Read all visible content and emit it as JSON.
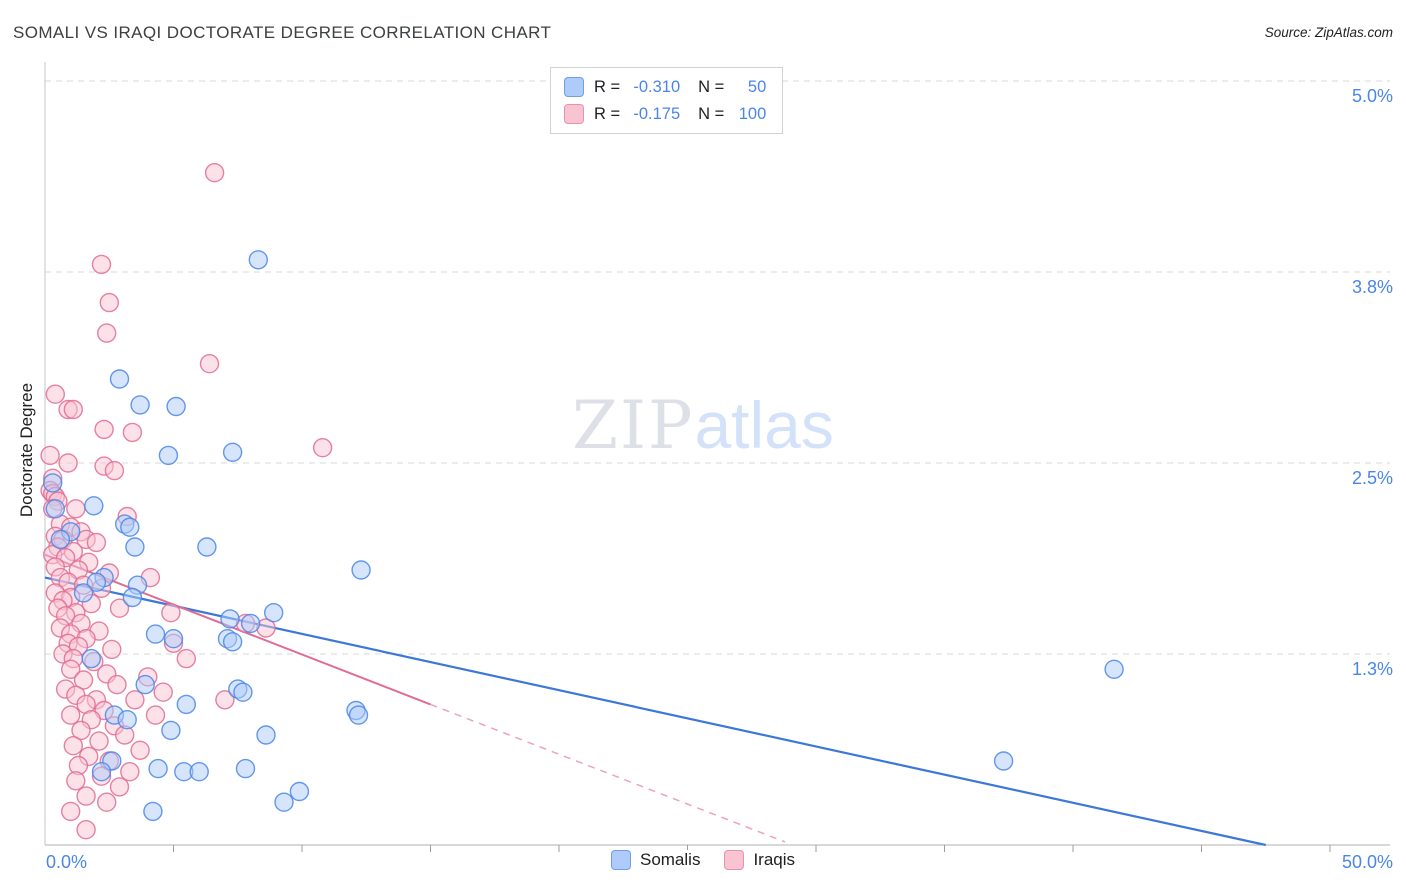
{
  "header": {
    "title": "SOMALI VS IRAQI DOCTORATE DEGREE CORRELATION CHART",
    "source": "Source: ZipAtlas.com"
  },
  "watermark": {
    "zip": "ZIP",
    "atlas": "atlas"
  },
  "legend_box": {
    "rows": [
      {
        "r_label": "R =",
        "r_value": "-0.310",
        "n_label": "N =",
        "n_value": "50"
      },
      {
        "r_label": "R =",
        "r_value": "-0.175",
        "n_label": "N =",
        "n_value": "100"
      }
    ]
  },
  "axes": {
    "y_label": "Doctorate Degree",
    "y_ticks": [
      {
        "label": "5.0%",
        "value": 5.0
      },
      {
        "label": "3.8%",
        "value": 3.75
      },
      {
        "label": "2.5%",
        "value": 2.5
      },
      {
        "label": "1.3%",
        "value": 1.25
      }
    ],
    "x_min_label": "0.0%",
    "x_max_label": "50.0%"
  },
  "bottom_legend": {
    "items": [
      {
        "label": "Somalis",
        "color": "#aecbfa",
        "border": "#6d9eeb"
      },
      {
        "label": "Iraqis",
        "color": "#f9c4d2",
        "border": "#e891ac"
      }
    ]
  },
  "chart_data": {
    "type": "scatter",
    "title": "Somali vs Iraqi Doctorate Degree correlation",
    "xlabel": "",
    "ylabel": "Doctorate Degree",
    "xlim": [
      0,
      50
    ],
    "ylim": [
      0,
      5.12
    ],
    "x_tick_step": 5,
    "grid": "dashed-horizontal",
    "legend_position": "bottom-center",
    "series": [
      {
        "name": "Somalis",
        "R": -0.31,
        "N": 50,
        "fill": "#aecbfa",
        "stroke": "#4a86e8",
        "points": [
          [
            8.3,
            3.83
          ],
          [
            2.9,
            3.05
          ],
          [
            3.7,
            2.88
          ],
          [
            5.1,
            2.87
          ],
          [
            7.3,
            2.57
          ],
          [
            4.8,
            2.55
          ],
          [
            0.3,
            2.37
          ],
          [
            0.4,
            2.2
          ],
          [
            1.9,
            2.22
          ],
          [
            3.1,
            2.1
          ],
          [
            3.3,
            2.08
          ],
          [
            1.0,
            2.05
          ],
          [
            0.6,
            2.0
          ],
          [
            3.5,
            1.95
          ],
          [
            6.3,
            1.95
          ],
          [
            12.3,
            1.8
          ],
          [
            2.3,
            1.75
          ],
          [
            2.0,
            1.72
          ],
          [
            3.6,
            1.7
          ],
          [
            1.5,
            1.65
          ],
          [
            8.9,
            1.52
          ],
          [
            7.2,
            1.48
          ],
          [
            8.0,
            1.45
          ],
          [
            4.3,
            1.38
          ],
          [
            5.0,
            1.35
          ],
          [
            7.1,
            1.35
          ],
          [
            7.3,
            1.33
          ],
          [
            1.8,
            1.22
          ],
          [
            41.6,
            1.15
          ],
          [
            3.9,
            1.05
          ],
          [
            7.5,
            1.02
          ],
          [
            7.7,
            1.0
          ],
          [
            12.1,
            0.88
          ],
          [
            12.2,
            0.85
          ],
          [
            2.7,
            0.85
          ],
          [
            3.2,
            0.82
          ],
          [
            5.5,
            0.92
          ],
          [
            4.9,
            0.75
          ],
          [
            8.6,
            0.72
          ],
          [
            2.6,
            0.55
          ],
          [
            4.4,
            0.5
          ],
          [
            5.4,
            0.48
          ],
          [
            6.0,
            0.48
          ],
          [
            7.8,
            0.5
          ],
          [
            37.3,
            0.55
          ],
          [
            9.9,
            0.35
          ],
          [
            9.3,
            0.28
          ],
          [
            4.2,
            0.22
          ],
          [
            2.2,
            0.48
          ],
          [
            3.4,
            1.62
          ]
        ]
      },
      {
        "name": "Iraqis",
        "R": -0.175,
        "N": 100,
        "fill": "#f9c4d2",
        "stroke": "#e06c93",
        "points": [
          [
            6.6,
            4.4
          ],
          [
            2.2,
            3.8
          ],
          [
            2.5,
            3.55
          ],
          [
            2.4,
            3.35
          ],
          [
            6.4,
            3.15
          ],
          [
            0.4,
            2.95
          ],
          [
            0.9,
            2.85
          ],
          [
            1.1,
            2.85
          ],
          [
            2.3,
            2.72
          ],
          [
            3.4,
            2.7
          ],
          [
            10.8,
            2.6
          ],
          [
            0.2,
            2.55
          ],
          [
            0.9,
            2.5
          ],
          [
            2.3,
            2.48
          ],
          [
            2.7,
            2.45
          ],
          [
            0.3,
            2.4
          ],
          [
            0.2,
            2.32
          ],
          [
            0.3,
            2.3
          ],
          [
            0.4,
            2.28
          ],
          [
            0.5,
            2.25
          ],
          [
            0.3,
            2.2
          ],
          [
            1.2,
            2.2
          ],
          [
            3.2,
            2.15
          ],
          [
            0.6,
            2.1
          ],
          [
            1.0,
            2.08
          ],
          [
            1.4,
            2.05
          ],
          [
            0.4,
            2.02
          ],
          [
            0.7,
            2.0
          ],
          [
            1.6,
            2.0
          ],
          [
            2.0,
            1.98
          ],
          [
            0.5,
            1.95
          ],
          [
            1.1,
            1.92
          ],
          [
            0.3,
            1.9
          ],
          [
            0.8,
            1.88
          ],
          [
            1.7,
            1.85
          ],
          [
            0.4,
            1.82
          ],
          [
            1.3,
            1.8
          ],
          [
            2.5,
            1.78
          ],
          [
            0.6,
            1.75
          ],
          [
            4.1,
            1.75
          ],
          [
            0.9,
            1.72
          ],
          [
            1.5,
            1.7
          ],
          [
            2.2,
            1.68
          ],
          [
            0.4,
            1.65
          ],
          [
            1.0,
            1.62
          ],
          [
            0.7,
            1.6
          ],
          [
            1.8,
            1.58
          ],
          [
            0.5,
            1.55
          ],
          [
            2.9,
            1.55
          ],
          [
            1.2,
            1.52
          ],
          [
            0.8,
            1.5
          ],
          [
            4.9,
            1.52
          ],
          [
            7.8,
            1.45
          ],
          [
            1.4,
            1.45
          ],
          [
            0.6,
            1.42
          ],
          [
            2.1,
            1.4
          ],
          [
            1.0,
            1.38
          ],
          [
            8.6,
            1.42
          ],
          [
            1.6,
            1.35
          ],
          [
            0.9,
            1.32
          ],
          [
            5.0,
            1.32
          ],
          [
            1.3,
            1.3
          ],
          [
            2.6,
            1.28
          ],
          [
            0.7,
            1.25
          ],
          [
            1.1,
            1.22
          ],
          [
            5.5,
            1.22
          ],
          [
            1.9,
            1.2
          ],
          [
            1.0,
            1.15
          ],
          [
            2.4,
            1.12
          ],
          [
            4.0,
            1.1
          ],
          [
            1.5,
            1.08
          ],
          [
            2.8,
            1.05
          ],
          [
            0.8,
            1.02
          ],
          [
            4.6,
            1.0
          ],
          [
            1.2,
            0.98
          ],
          [
            2.0,
            0.95
          ],
          [
            3.5,
            0.95
          ],
          [
            1.6,
            0.92
          ],
          [
            7.0,
            0.95
          ],
          [
            2.3,
            0.88
          ],
          [
            1.0,
            0.85
          ],
          [
            4.3,
            0.85
          ],
          [
            1.8,
            0.82
          ],
          [
            2.7,
            0.78
          ],
          [
            1.4,
            0.75
          ],
          [
            3.1,
            0.72
          ],
          [
            2.1,
            0.68
          ],
          [
            1.1,
            0.65
          ],
          [
            3.7,
            0.62
          ],
          [
            1.7,
            0.58
          ],
          [
            2.5,
            0.55
          ],
          [
            1.3,
            0.52
          ],
          [
            3.3,
            0.48
          ],
          [
            2.2,
            0.45
          ],
          [
            1.2,
            0.42
          ],
          [
            2.9,
            0.38
          ],
          [
            1.6,
            0.32
          ],
          [
            2.4,
            0.28
          ],
          [
            1.0,
            0.22
          ],
          [
            1.6,
            0.1
          ]
        ]
      }
    ],
    "trend_lines": [
      {
        "series": "Somalis",
        "style": "solid",
        "x1": 0,
        "y1": 1.75,
        "x2": 47.5,
        "y2": 0.0,
        "color": "#3c78d8",
        "width": 2.2
      },
      {
        "series": "Iraqis",
        "style": "solid",
        "x1": 0,
        "y1": 1.9,
        "x2": 15.0,
        "y2": 0.92,
        "color": "#e06c93",
        "width": 2.0
      },
      {
        "series": "Iraqis",
        "style": "dashed",
        "x1": 15.0,
        "y1": 0.92,
        "x2": 28.8,
        "y2": 0.02,
        "color": "#eba4ba",
        "width": 1.5
      }
    ]
  }
}
